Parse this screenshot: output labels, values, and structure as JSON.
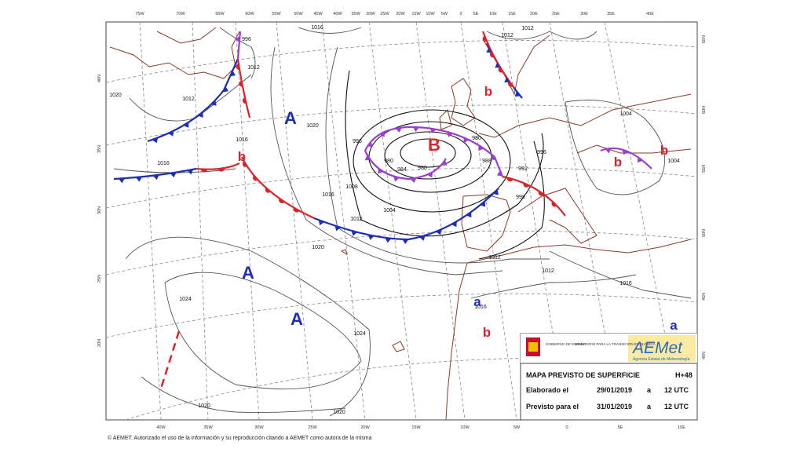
{
  "map": {
    "top_longitudes": [
      "75W",
      "70W",
      "65W",
      "60W",
      "55W",
      "50W",
      "45W",
      "40W",
      "35W",
      "30W",
      "25W",
      "20W",
      "15W",
      "10W",
      "5W",
      "0",
      "5E",
      "10E",
      "15E",
      "20E",
      "25E",
      "30E",
      "35E",
      "40E"
    ],
    "bottom_longitudes": [
      "40W",
      "35W",
      "30W",
      "25W",
      "20W",
      "15W",
      "10W",
      "5W",
      "0",
      "5E",
      "10E"
    ],
    "left_latitudes": [
      "40N",
      "35N",
      "30N",
      "25N",
      "20N"
    ],
    "right_latitudes": [
      "65N",
      "60N",
      "55N",
      "50N",
      "45N",
      "40N"
    ],
    "pressure_centers": [
      {
        "label": "A",
        "color": "#1f2fb5"
      },
      {
        "label": "B",
        "color": "#d7262b"
      },
      {
        "label": "b",
        "color": "#d7262b"
      },
      {
        "label": "b",
        "color": "#d7262b"
      },
      {
        "label": "b",
        "color": "#d7262b"
      },
      {
        "label": "b",
        "color": "#d7262b"
      },
      {
        "label": "A",
        "color": "#1f2fb5"
      },
      {
        "label": "A",
        "color": "#1f2fb5"
      },
      {
        "label": "a",
        "color": "#1f2fb5"
      },
      {
        "label": "b",
        "color": "#d7262b"
      },
      {
        "label": "a",
        "color": "#1f2fb5"
      }
    ],
    "isobar_labels": [
      "1012",
      "1012",
      "996",
      "1020",
      "1016",
      "1020",
      "1016",
      "1016",
      "1008",
      "1004",
      "1012",
      "1020",
      "1024",
      "1024",
      "1020",
      "1020",
      "996",
      "980",
      "984",
      "980",
      "980",
      "988",
      "992",
      "996",
      "998",
      "1012",
      "1012",
      "1016",
      "1016",
      "1004",
      "1004",
      "1012",
      "1012",
      "1016"
    ]
  },
  "info_box": {
    "government": "GOBIERNO DE ESPAÑA",
    "ministry": "MINISTERIO PARA LA TRANSICIÓN ECOLÓGICA",
    "logo": "AEMet",
    "agency": "Agencia Estatal de Meteorología",
    "title": "MAPA PREVISTO DE SUPERFICIE",
    "horizon": "H+48",
    "rows": [
      {
        "label": "Elaborado el",
        "date": "29/01/2019",
        "sep": "a",
        "time": "12 UTC"
      },
      {
        "label": "Previsto para el",
        "date": "31/01/2019",
        "sep": "a",
        "time": "12 UTC"
      }
    ]
  },
  "copyright": "© AEMET. Autorizado el uso de la información y su reproducción citando a AEMET como autora de la misma"
}
